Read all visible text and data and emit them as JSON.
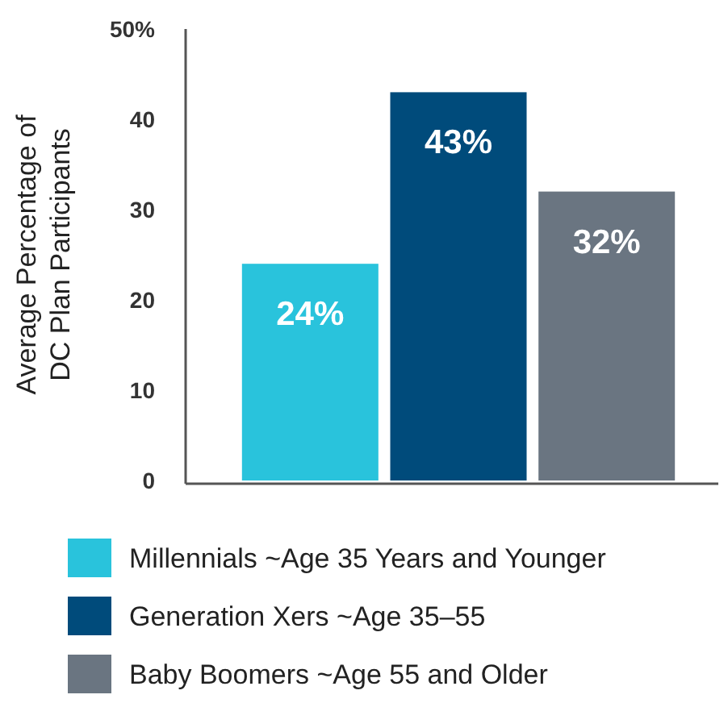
{
  "chart_data": {
    "type": "bar",
    "ylabel": "Average Percentage of\nDC Plan Participants",
    "categories": [
      null
    ],
    "series": [
      {
        "name": "Millennials ~Age 35 Years and Younger",
        "color": "#29c3dc",
        "values": [
          24
        ],
        "value_labels": [
          "24%"
        ]
      },
      {
        "name": "Generation Xers ~Age 35–55",
        "color": "#004b7b",
        "values": [
          43
        ],
        "value_labels": [
          "43%"
        ]
      },
      {
        "name": "Baby Boomers ~Age 55 and Older",
        "color": "#6a7581",
        "values": [
          32
        ],
        "value_labels": [
          "32%"
        ]
      }
    ],
    "ylim": [
      0,
      50
    ],
    "yticks": [
      0,
      10,
      20,
      30,
      40,
      {
        "value": 50,
        "label": "50%"
      }
    ],
    "grid": false,
    "legend": "bottom"
  }
}
